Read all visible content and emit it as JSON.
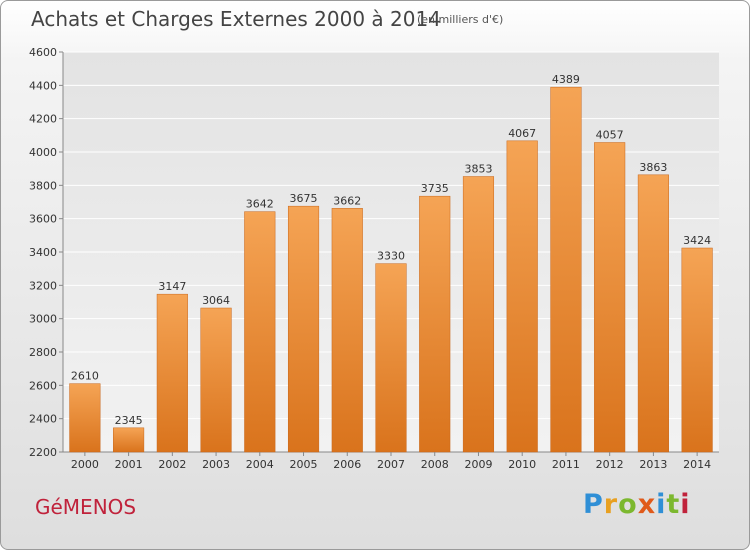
{
  "header": {
    "title": "Achats et Charges Externes 2000 à 2014",
    "unit": "(en milliers d'€)"
  },
  "footer": {
    "commune": "GéMENOS",
    "logo_letters": [
      "P",
      "r",
      "o",
      "x",
      "i",
      "t",
      "i"
    ],
    "logo_colors": [
      "#2f8fd6",
      "#e8a020",
      "#7cb82f",
      "#e05a1a",
      "#2f8fd6",
      "#7cb82f",
      "#c0223b"
    ]
  },
  "chart_data": {
    "type": "bar",
    "title": "Achats et Charges Externes 2000 à 2014",
    "subtitle": "(en milliers d'€)",
    "xlabel": "",
    "ylabel": "",
    "categories": [
      "2000",
      "2001",
      "2002",
      "2003",
      "2004",
      "2005",
      "2006",
      "2007",
      "2008",
      "2009",
      "2010",
      "2011",
      "2012",
      "2013",
      "2014"
    ],
    "values": [
      2610,
      2345,
      3147,
      3064,
      3642,
      3675,
      3662,
      3330,
      3735,
      3853,
      4067,
      4389,
      4057,
      3863,
      3424
    ],
    "ylim": [
      2200,
      4600
    ],
    "yticks": [
      2200,
      2400,
      2600,
      2800,
      3000,
      3200,
      3400,
      3600,
      3800,
      4000,
      4200,
      4400,
      4600
    ],
    "grid": true,
    "bar_color_top": "#f5a455",
    "bar_color_bottom": "#d9731c"
  }
}
